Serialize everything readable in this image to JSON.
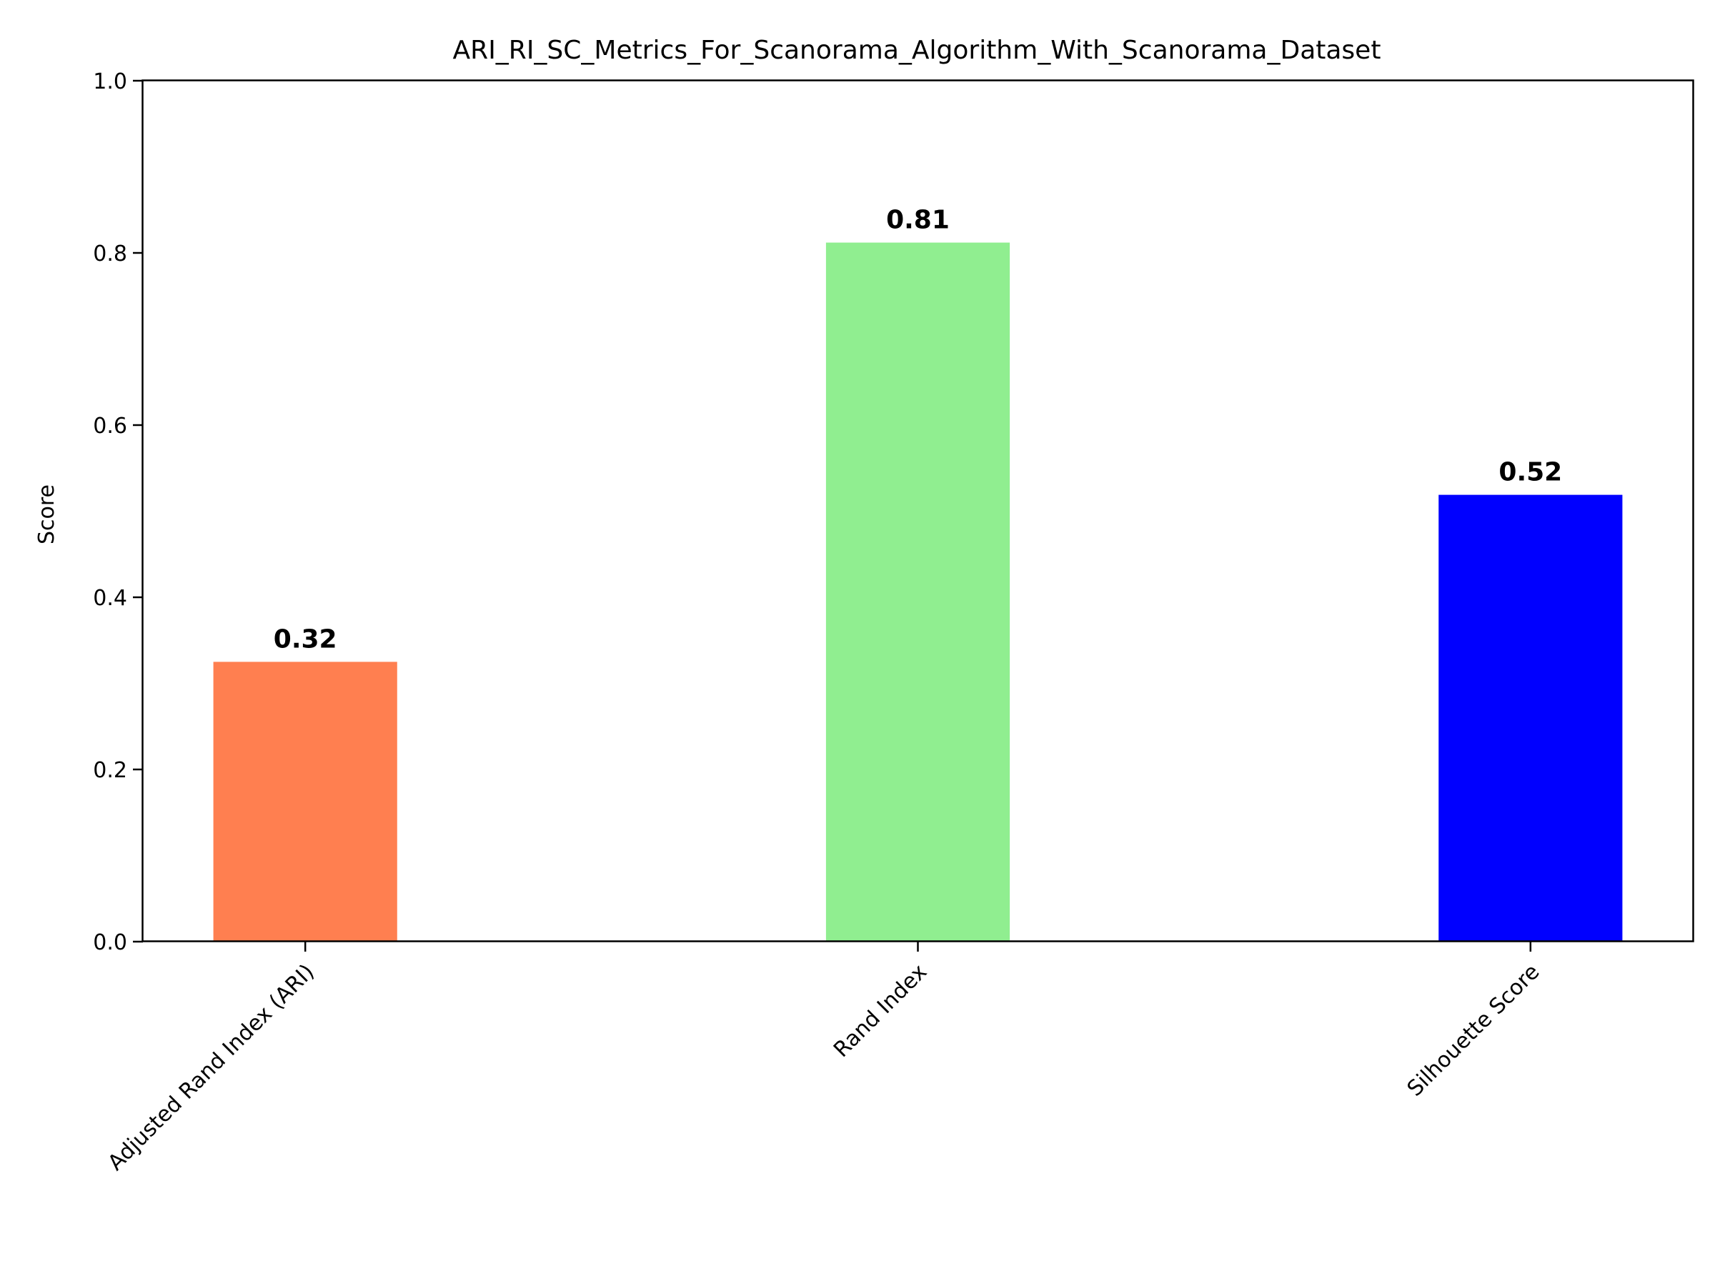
{
  "chart_data": {
    "type": "bar",
    "title": "ARI_RI_SC_Metrics_For_Scanorama_Algorithm_With_Scanorama_Dataset",
    "xlabel": "",
    "ylabel": "Score",
    "ylim": [
      0,
      1.0
    ],
    "yticks": [
      "0.0",
      "0.2",
      "0.4",
      "0.6",
      "0.8",
      "1.0"
    ],
    "categories": [
      "Adjusted Rand Index (ARI)",
      "Rand Index",
      "Silhouette Score"
    ],
    "values": [
      0.325,
      0.812,
      0.519
    ],
    "value_labels": [
      "0.32",
      "0.81",
      "0.52"
    ],
    "colors": [
      "#ff7f50",
      "#90ee90",
      "#0000ff"
    ],
    "grid": false,
    "legend": "none"
  }
}
